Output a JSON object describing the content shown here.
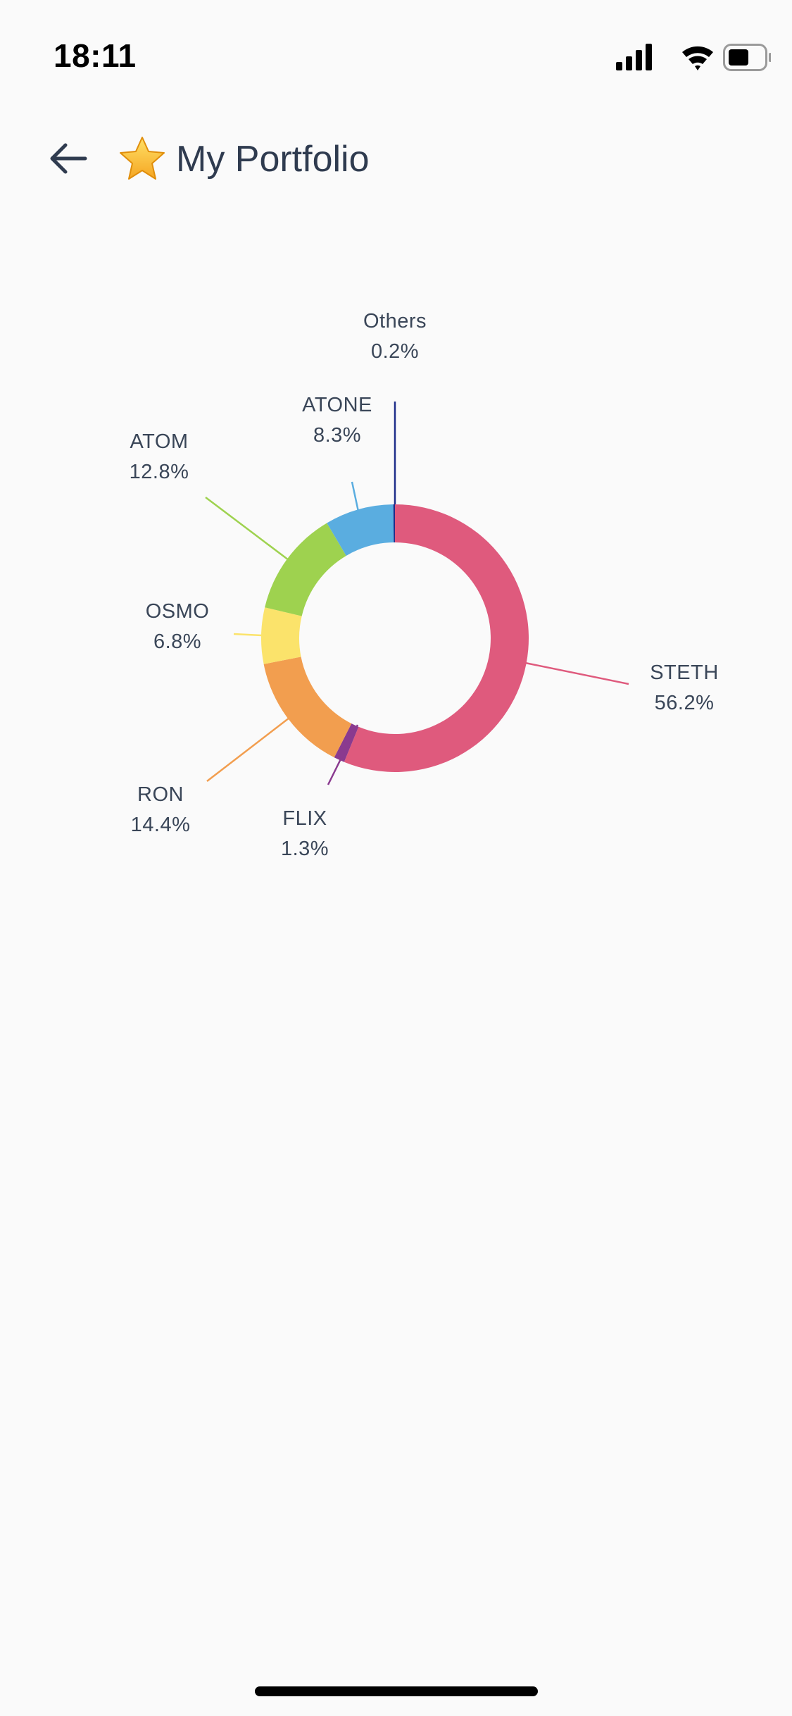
{
  "status_bar": {
    "time": "18:11",
    "icons": [
      "signal-icon",
      "wifi-icon",
      "battery-icon"
    ]
  },
  "header": {
    "back_icon": "arrow-left-icon",
    "title_emoji": "star-icon",
    "title": "My Portfolio"
  },
  "colors": {
    "background": "#fafafa",
    "title_text": "#2f3b4f",
    "label_text": "#3a4658"
  },
  "chart_data": {
    "type": "pie",
    "donut": true,
    "title": "",
    "slices": [
      {
        "label": "STETH",
        "value": 56.2,
        "display": "56.2%",
        "color": "#df5a7d"
      },
      {
        "label": "FLIX",
        "value": 1.3,
        "display": "1.3%",
        "color": "#8a3a8f"
      },
      {
        "label": "RON",
        "value": 14.4,
        "display": "14.4%",
        "color": "#f29e4f"
      },
      {
        "label": "OSMO",
        "value": 6.8,
        "display": "6.8%",
        "color": "#fbe36b"
      },
      {
        "label": "ATOM",
        "value": 12.8,
        "display": "12.8%",
        "color": "#9ed24f"
      },
      {
        "label": "ATONE",
        "value": 8.3,
        "display": "8.3%",
        "color": "#5aade0"
      },
      {
        "label": "Others",
        "value": 0.2,
        "display": "0.2%",
        "color": "#1f2e8a"
      }
    ]
  }
}
